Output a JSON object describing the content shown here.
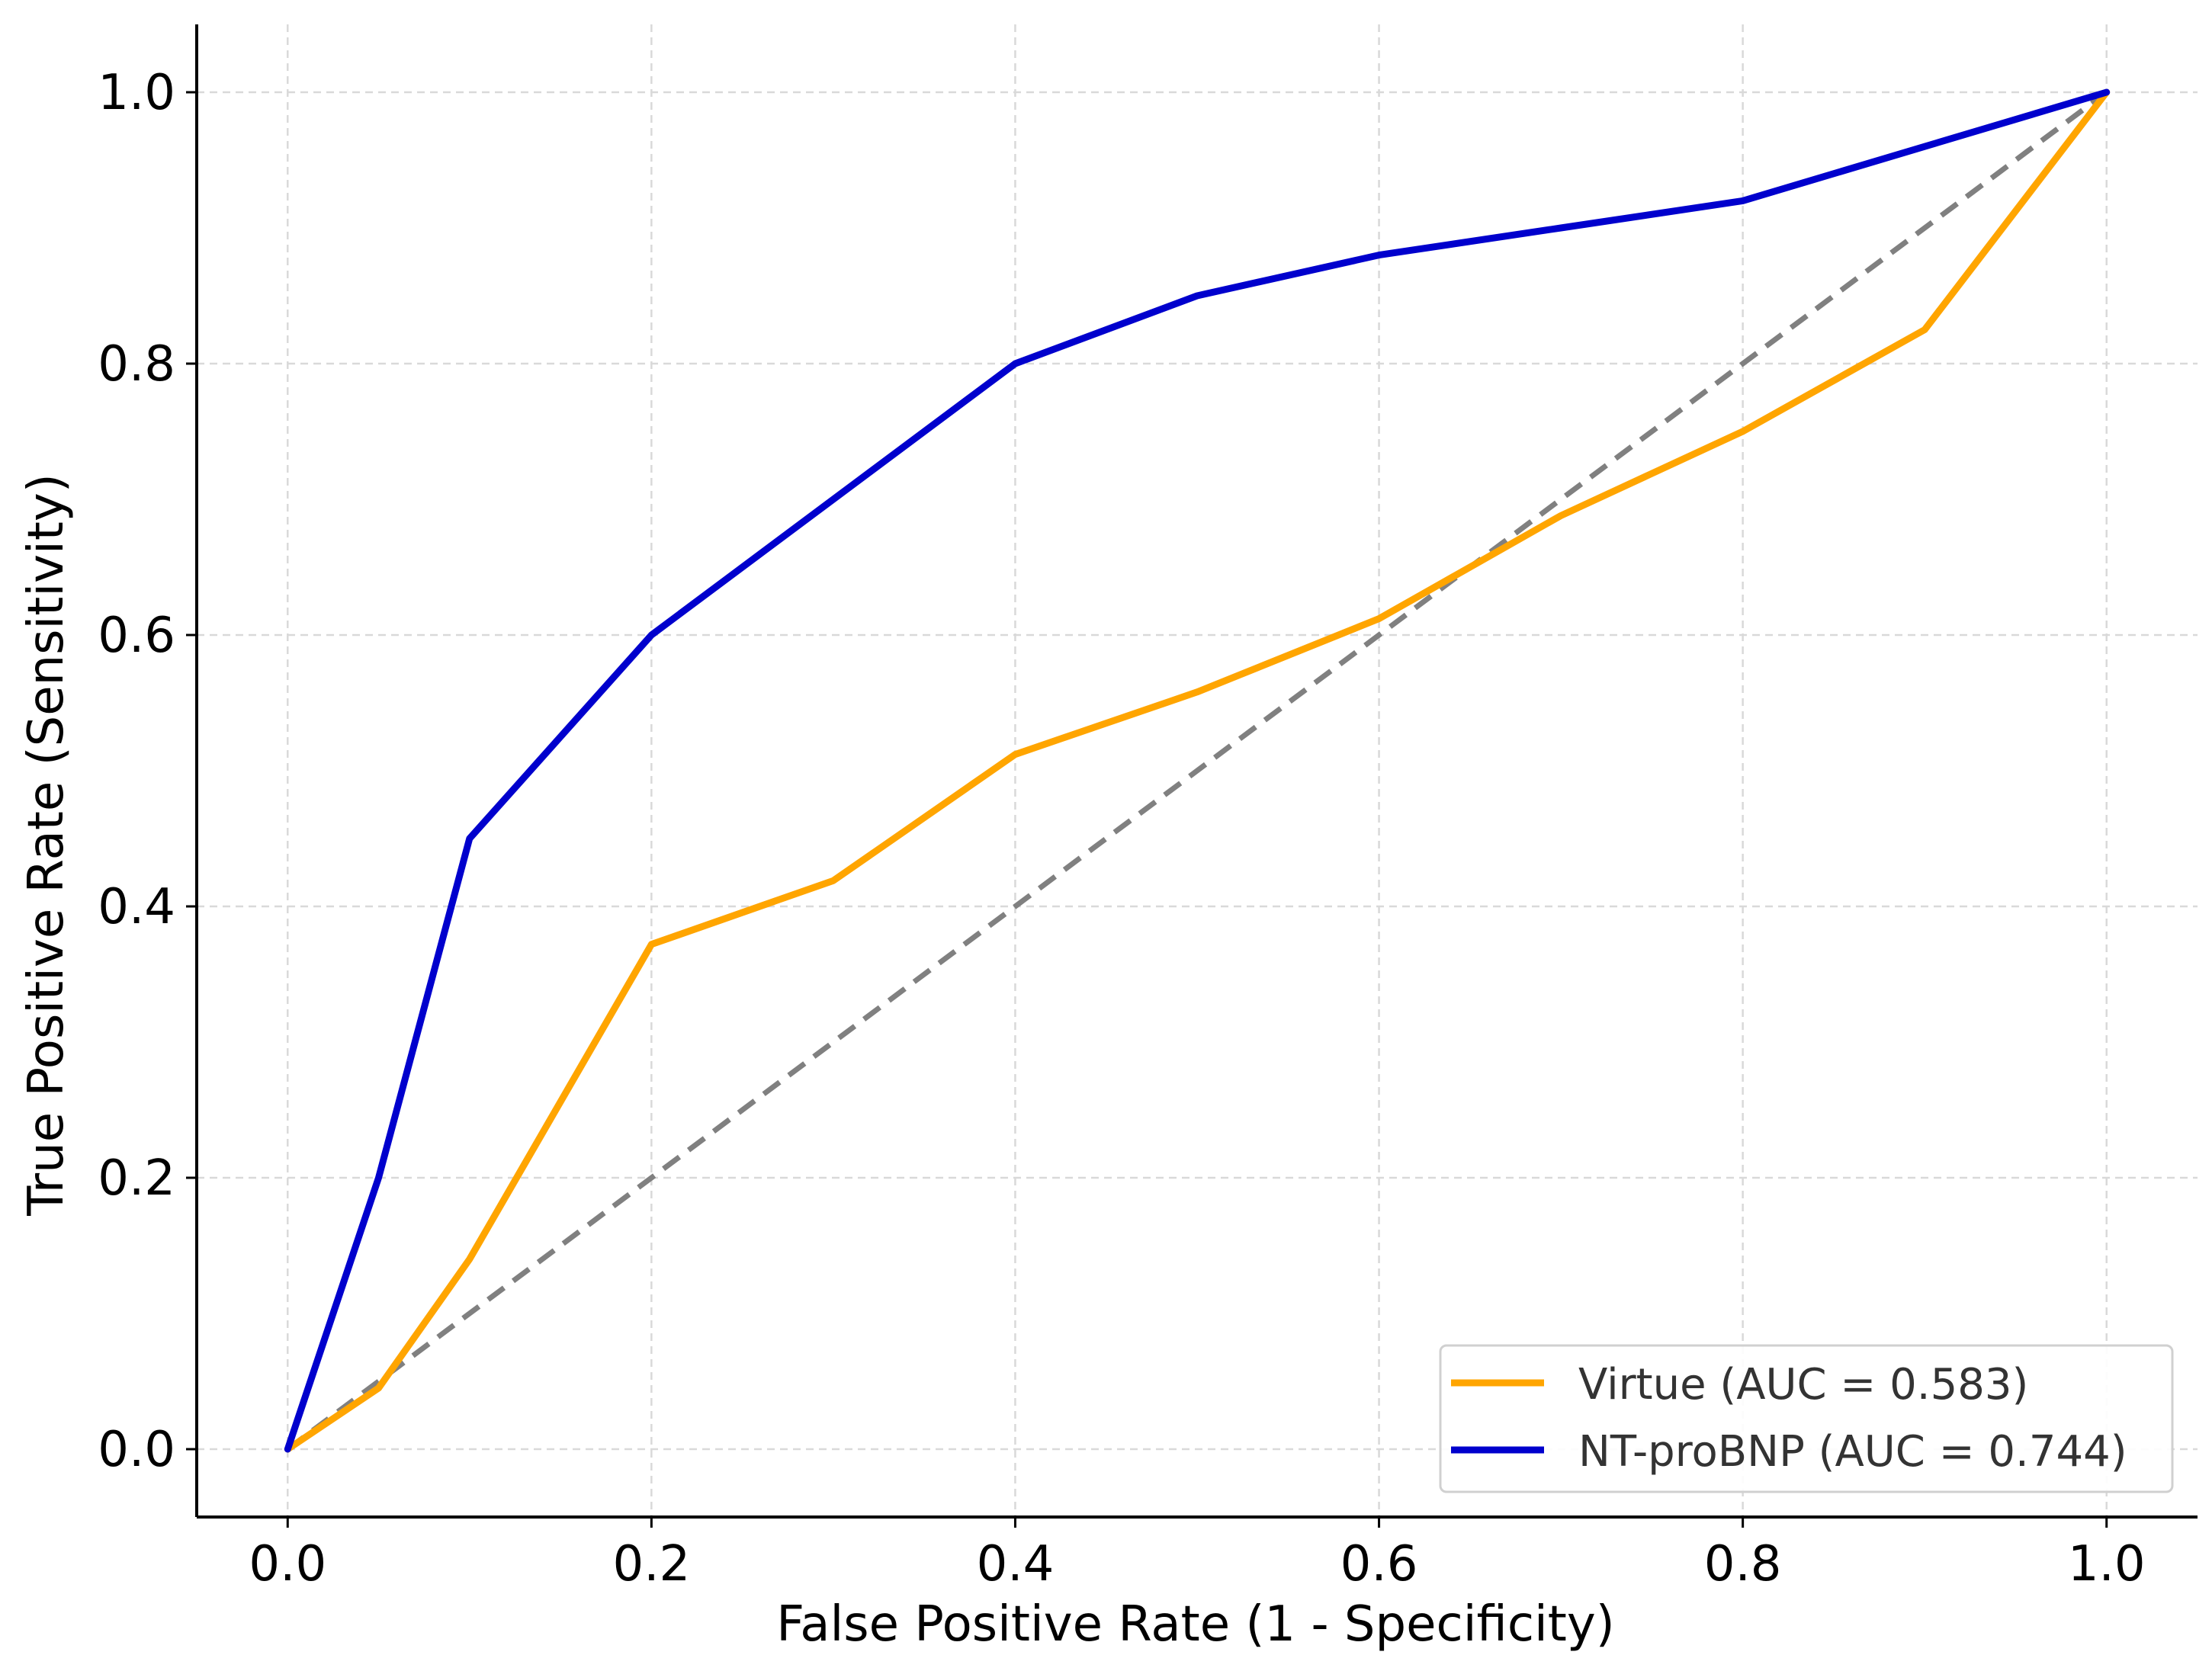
{
  "chart_data": {
    "type": "line",
    "title": "",
    "xlabel": "False Positive Rate (1 - Specificity)",
    "ylabel": "True Positive Rate (Sensitivity)",
    "xlim": [
      -0.05,
      1.05
    ],
    "ylim": [
      -0.05,
      1.05
    ],
    "x_ticks": [
      0.0,
      0.2,
      0.4,
      0.6,
      0.8,
      1.0
    ],
    "y_ticks": [
      0.0,
      0.2,
      0.4,
      0.6,
      0.8,
      1.0
    ],
    "x_tick_labels": [
      "0.0",
      "0.2",
      "0.4",
      "0.6",
      "0.8",
      "1.0"
    ],
    "y_tick_labels": [
      "0.0",
      "0.2",
      "0.4",
      "0.6",
      "0.8",
      "1.0"
    ],
    "grid": true,
    "legend_position": "bottom-right",
    "series": [
      {
        "name": "Virtue (AUC = 0.583)",
        "color": "#FFA500",
        "x": [
          0.0,
          0.05,
          0.1,
          0.2,
          0.3,
          0.4,
          0.5,
          0.6,
          0.7,
          0.8,
          0.9,
          1.0
        ],
        "y": [
          0.0,
          0.045,
          0.14,
          0.372,
          0.419,
          0.512,
          0.558,
          0.612,
          0.688,
          0.75,
          0.825,
          1.0
        ]
      },
      {
        "name": "NT-proBNP (AUC = 0.744)",
        "color": "#0000CD",
        "x": [
          0.0,
          0.05,
          0.1,
          0.2,
          0.3,
          0.4,
          0.5,
          0.6,
          0.7,
          0.8,
          0.9,
          1.0
        ],
        "y": [
          0.0,
          0.2,
          0.45,
          0.6,
          0.7,
          0.8,
          0.85,
          0.88,
          0.9,
          0.92,
          0.96,
          1.0
        ]
      }
    ],
    "reference_line": {
      "x": [
        0.0,
        1.0
      ],
      "y": [
        0.0,
        1.0
      ],
      "color": "#808080",
      "style": "dashed"
    }
  }
}
